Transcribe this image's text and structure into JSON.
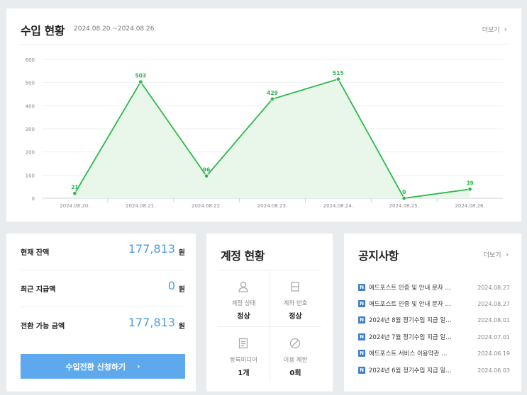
{
  "income": {
    "title": "수입 현황",
    "period": "2024.08.20.~2024.08.26.",
    "more_label": "더보기",
    "chart_data": {
      "type": "area",
      "x": [
        "2024.08.20.",
        "2024.08.21.",
        "2024.08.22.",
        "2024.08.23.",
        "2024.08.24.",
        "2024.08.25.",
        "2024.08.26."
      ],
      "values": [
        21,
        503,
        96,
        429,
        515,
        0,
        39
      ],
      "data_labels": [
        "21",
        "503",
        "96",
        "429",
        "515",
        "0",
        "39"
      ],
      "yticks": [
        "0",
        "100",
        "200",
        "300",
        "400",
        "500",
        "600"
      ],
      "ylim": [
        0,
        600
      ],
      "grid": true,
      "line_color": "#2db84b",
      "fill_color": "#e8f7ea"
    }
  },
  "balance": {
    "rows": [
      {
        "label": "현재 잔액",
        "value": "177,813",
        "unit": "원"
      },
      {
        "label": "최근 지급액",
        "value": "0",
        "unit": "원"
      },
      {
        "label": "전환 가능 금액",
        "value": "177,813",
        "unit": "원"
      }
    ],
    "button_label": "수입전환 신청하기",
    "button_color": "#5ea9ee"
  },
  "account": {
    "title": "계정 현황",
    "cells": [
      {
        "icon": "person-icon",
        "label": "계정 상태",
        "value": "정상"
      },
      {
        "icon": "bank-card-icon",
        "label": "계좌 번호",
        "value": "정상"
      },
      {
        "icon": "document-icon",
        "label": "등록미디어",
        "value": "1개"
      },
      {
        "icon": "ban-icon",
        "label": "이용 제한",
        "value": "0회"
      }
    ]
  },
  "notices": {
    "title": "공지사항",
    "more_label": "더보기",
    "badge": "N",
    "items": [
      {
        "title": "애드포스트 인증 및 안내 문자 …",
        "date": "2024.08.27"
      },
      {
        "title": "애드포스트 인증 및 안내 문자 …",
        "date": "2024.08.27"
      },
      {
        "title": "2024년 8월 정기수입 지급 일…",
        "date": "2024.08.01"
      },
      {
        "title": "2024년 7월 정기수입 지급 일…",
        "date": "2024.07.01"
      },
      {
        "title": "애드포스트 서비스 이용약관 …",
        "date": "2024.06.19"
      },
      {
        "title": "2024년 6월 정기수입 지급 일…",
        "date": "2024.06.03"
      }
    ]
  }
}
